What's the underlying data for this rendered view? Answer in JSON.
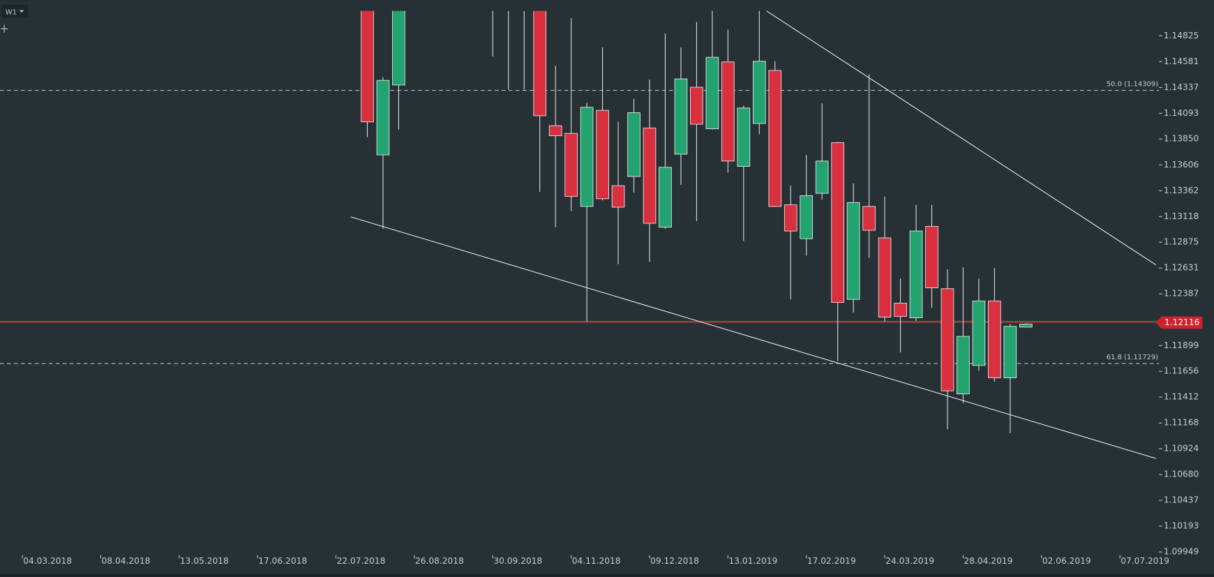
{
  "chart_data": {
    "type": "candlestick",
    "timeframe": "W1",
    "x": [
      "05.08.2018",
      "12.08.2018",
      "19.08.2018",
      "30.09.2018",
      "07.10.2018",
      "14.10.2018",
      "21.10.2018",
      "28.10.2018",
      "04.11.2018",
      "11.11.2018",
      "18.11.2018",
      "25.11.2018",
      "02.12.2018",
      "09.12.2018",
      "16.12.2018",
      "23.12.2018",
      "30.12.2018",
      "06.01.2019",
      "13.01.2019",
      "20.01.2019",
      "27.01.2019",
      "03.02.2019",
      "10.02.2019",
      "17.02.2019",
      "24.02.2019",
      "03.03.2019",
      "10.03.2019",
      "17.03.2019",
      "24.03.2019",
      "31.03.2019",
      "07.04.2019",
      "14.04.2019",
      "21.04.2019",
      "28.04.2019",
      "05.05.2019",
      "12.05.2019",
      "19.05.2019",
      "26.05.2019"
    ],
    "open": [
      1.1518,
      1.137,
      1.1436,
      1.162,
      1.16,
      1.156,
      1.153,
      1.13976,
      1.13903,
      1.13213,
      1.14121,
      1.13409,
      1.13496,
      1.13954,
      1.13017,
      1.13707,
      1.14339,
      1.13947,
      1.14578,
      1.13591,
      1.13997,
      1.14498,
      1.13228,
      1.12908,
      1.13337,
      1.13816,
      1.12335,
      1.13213,
      1.12916,
      1.12299,
      1.12161,
      1.13025,
      1.12436,
      1.11442,
      1.11711,
      1.1232,
      1.11594,
      1.12073
    ],
    "high": [
      1.153,
      1.14433,
      1.153,
      1.165,
      1.162,
      1.162,
      1.155,
      1.14542,
      1.14992,
      1.14193,
      1.14716,
      1.14012,
      1.1423,
      1.14411,
      1.14847,
      1.14716,
      1.14956,
      1.151,
      1.14883,
      1.14164,
      1.151,
      1.14585,
      1.13409,
      1.137,
      1.14186,
      1.13823,
      1.13431,
      1.14462,
      1.13308,
      1.12531,
      1.13228,
      1.13228,
      1.12618,
      1.1264,
      1.12531,
      1.12632,
      1.12102,
      1.12109
    ],
    "low": [
      1.13867,
      1.13003,
      1.13939,
      1.14629,
      1.14317,
      1.14317,
      1.13351,
      1.13017,
      1.1317,
      1.12124,
      1.13271,
      1.12669,
      1.13344,
      1.1269,
      1.13003,
      1.13417,
      1.13075,
      1.1394,
      1.13533,
      1.12887,
      1.13896,
      1.1321,
      1.12335,
      1.12749,
      1.13279,
      1.11754,
      1.12211,
      1.12727,
      1.12124,
      1.11834,
      1.12132,
      1.12255,
      1.11108,
      1.11355,
      1.1166,
      1.11558,
      1.11072,
      1.1207
    ],
    "close": [
      1.14012,
      1.14404,
      1.152,
      1.158,
      1.156,
      1.16,
      1.1407,
      1.13881,
      1.13308,
      1.1415,
      1.13286,
      1.13206,
      1.14099,
      1.13054,
      1.13583,
      1.14418,
      1.1399,
      1.14622,
      1.13642,
      1.14143,
      1.14585,
      1.13213,
      1.12981,
      1.13315,
      1.13642,
      1.12306,
      1.1325,
      1.12988,
      1.12168,
      1.12175,
      1.12981,
      1.12444,
      1.11471,
      1.11986,
      1.1232,
      1.11594,
      1.1208,
      1.12102
    ],
    "up_color": "#22a36f",
    "down_color": "#d9303f",
    "xlim": [
      "22.02.2018",
      "18.08.2019"
    ],
    "xticks": [
      "04.03.2018",
      "08.04.2018",
      "13.05.2018",
      "17.06.2018",
      "22.07.2018",
      "26.08.2018",
      "30.09.2018",
      "04.11.2018",
      "09.12.2018",
      "13.01.2019",
      "17.02.2019",
      "24.03.2019",
      "28.04.2019",
      "02.06.2019",
      "07.07.2019"
    ],
    "ylim": [
      1.0975,
      1.1506
    ],
    "yticks": [
      1.14825,
      1.14581,
      1.14337,
      1.14093,
      {
        "value": 1.1385,
        "label": "1.13850"
      },
      1.13606,
      1.13362,
      1.13118,
      1.12875,
      1.12631,
      1.12387,
      1.11899,
      1.11656,
      1.11412,
      1.11168,
      1.10924,
      {
        "value": 1.1068,
        "label": "1.10680"
      },
      1.10437,
      1.10193,
      1.09949
    ],
    "last_price": 1.12116,
    "levels": [
      {
        "label": "50.0 (1.14309)",
        "value": 1.14309
      },
      {
        "label": "61.8 (1.11729)",
        "value": 1.11729
      }
    ]
  }
}
